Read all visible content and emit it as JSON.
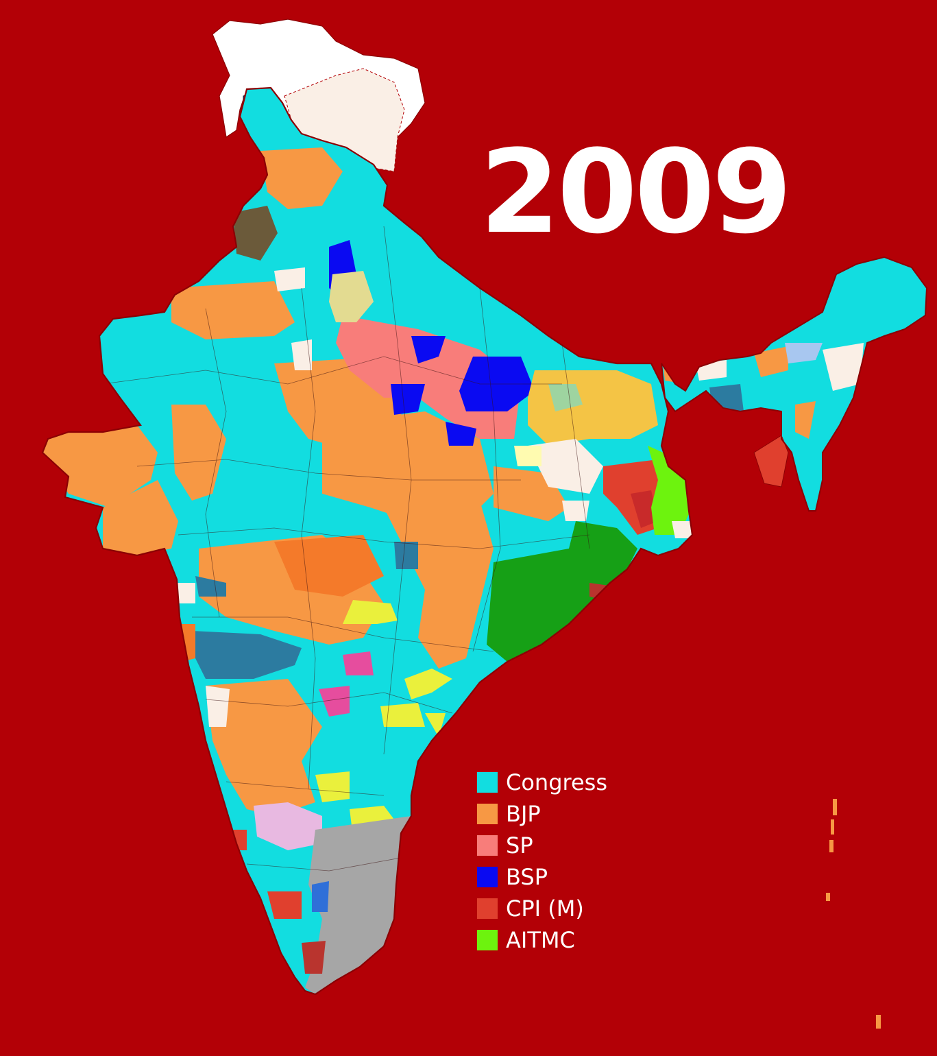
{
  "title": "2009",
  "legend": [
    {
      "label": "Congress",
      "color": "#12DDE0"
    },
    {
      "label": "BJP",
      "color": "#F79844"
    },
    {
      "label": "SP",
      "color": "#F87D7A"
    },
    {
      "label": "BSP",
      "color": "#0A0AF2"
    },
    {
      "label": "CPI (M)",
      "color": "#E0402E"
    },
    {
      "label": "AITMC",
      "color": "#6DF30E"
    }
  ],
  "colors": {
    "background": "#B30006",
    "other_parties": "#FAEFE6",
    "unclaimed": "#FFFFFF",
    "border": "#8B0004",
    "bjd": "#16A016",
    "dmk": "#A6A6A6",
    "shiv_sena": "#2C7BA0",
    "tdp": "#EAF03C",
    "jdu": "#F4C445",
    "inld": "#6B5A3A",
    "rld": "#E3DB91",
    "jds": "#E8B9E1",
    "ncp": "#E64D9E"
  }
}
